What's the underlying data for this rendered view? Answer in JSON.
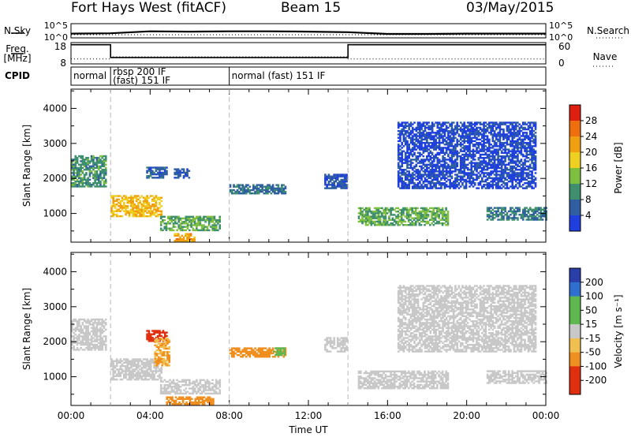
{
  "header": {
    "radar": "Fort Hays West (fitACF)",
    "beam": "Beam 15",
    "date": "03/May/2015"
  },
  "strips": {
    "nsky_label": "N.Sky",
    "nsearch_label": "N.Search",
    "freq_label": "Freq.",
    "freq_unit": "[MHz]",
    "nave_label": "Nave",
    "cpid_label": "CPID",
    "nsky_ticks": [
      "10^5",
      "10^0"
    ],
    "nsearch_ticks": [
      "10^5",
      "10^0"
    ],
    "freq_ticks": [
      "18",
      "8"
    ],
    "nave_ticks": [
      "60",
      "0"
    ],
    "cpid_segments": [
      {
        "start": 0.0,
        "end": 2.0,
        "lines": [
          "normal"
        ]
      },
      {
        "start": 2.0,
        "end": 8.0,
        "lines": [
          "rbsp 200 IF",
          "(fast) 151 IF"
        ]
      },
      {
        "start": 8.0,
        "end": 24.0,
        "lines": [
          "normal (fast) 151 IF"
        ]
      }
    ]
  },
  "chart_data": [
    {
      "type": "line",
      "title": "N.Sky / N.Search",
      "x_unit": "hours UT",
      "series": [
        {
          "name": "N.Sky",
          "x": [
            0,
            2,
            4,
            6,
            8,
            10,
            12,
            14,
            16,
            18,
            20,
            22,
            24
          ],
          "y_log10": [
            1.5,
            1.6,
            2.3,
            2.2,
            2.3,
            2.3,
            2.2,
            2.0,
            1.4,
            1.4,
            1.5,
            1.5,
            1.5
          ]
        }
      ]
    },
    {
      "type": "line",
      "title": "Freq. / Nave",
      "series": [
        {
          "name": "Freq.",
          "unit": "MHz",
          "x": [
            0,
            2,
            2,
            14,
            14,
            24
          ],
          "y": [
            17,
            17,
            11,
            11,
            17,
            17
          ]
        },
        {
          "name": "Nave",
          "x": [
            0,
            2,
            2,
            14,
            14,
            24
          ],
          "y": [
            14,
            14,
            20,
            20,
            14,
            14
          ]
        }
      ]
    },
    {
      "type": "heatmap",
      "ylabel": "Slant Range [km]",
      "colorbar_label": "Power [dB]",
      "colorbar_ticks": [
        4,
        8,
        12,
        16,
        20,
        24,
        28
      ],
      "xlim": [
        0,
        24
      ],
      "ylim": [
        180,
        4550
      ],
      "yticks": [
        1000,
        2000,
        3000,
        4000
      ],
      "regions": [
        {
          "t0": 0.0,
          "t1": 1.8,
          "r0": 1750,
          "r1": 2650,
          "v": 10
        },
        {
          "t0": 2.0,
          "t1": 4.6,
          "r0": 900,
          "r1": 1500,
          "v": 20
        },
        {
          "t0": 3.8,
          "t1": 4.8,
          "r0": 2000,
          "r1": 2300,
          "v": 6
        },
        {
          "t0": 5.2,
          "t1": 6.0,
          "r0": 2000,
          "r1": 2250,
          "v": 5
        },
        {
          "t0": 4.5,
          "t1": 7.5,
          "r0": 500,
          "r1": 900,
          "v": 12
        },
        {
          "t0": 5.2,
          "t1": 6.2,
          "r0": 200,
          "r1": 400,
          "v": 22
        },
        {
          "t0": 8.0,
          "t1": 10.8,
          "r0": 1550,
          "r1": 1800,
          "v": 7
        },
        {
          "t0": 12.8,
          "t1": 13.9,
          "r0": 1700,
          "r1": 2100,
          "v": 5
        },
        {
          "t0": 14.5,
          "t1": 19.0,
          "r0": 650,
          "r1": 1150,
          "v": 12
        },
        {
          "t0": 16.5,
          "t1": 23.5,
          "r0": 1700,
          "r1": 3600,
          "v": 3
        },
        {
          "t0": 21.0,
          "t1": 24.0,
          "r0": 800,
          "r1": 1150,
          "v": 8
        }
      ]
    },
    {
      "type": "heatmap",
      "ylabel": "Slant Range [km]",
      "xlabel": "Time UT",
      "colorbar_label": "Velocity [m s⁻¹]",
      "colorbar_ticks": [
        200,
        100,
        50,
        15,
        -15,
        -50,
        -100,
        -200
      ],
      "xticks": [
        "00:00",
        "04:00",
        "08:00",
        "12:00",
        "16:00",
        "20:00",
        "00:00"
      ],
      "xlim": [
        0,
        24
      ],
      "ylim": [
        180,
        4550
      ],
      "yticks": [
        1000,
        2000,
        3000,
        4000
      ],
      "regions": [
        {
          "t0": 0.0,
          "t1": 1.8,
          "r0": 1750,
          "r1": 2650,
          "v": 0
        },
        {
          "t0": 2.0,
          "t1": 4.6,
          "r0": 900,
          "r1": 1500,
          "v": 0
        },
        {
          "t0": 3.8,
          "t1": 4.8,
          "r0": 2000,
          "r1": 2300,
          "v": -200
        },
        {
          "t0": 4.2,
          "t1": 5.0,
          "r0": 1300,
          "r1": 2100,
          "v": -50
        },
        {
          "t0": 4.5,
          "t1": 7.5,
          "r0": 500,
          "r1": 900,
          "v": 0
        },
        {
          "t0": 4.8,
          "t1": 7.2,
          "r0": 200,
          "r1": 400,
          "v": -60
        },
        {
          "t0": 8.0,
          "t1": 10.8,
          "r0": 1550,
          "r1": 1800,
          "v": -90
        },
        {
          "t0": 10.2,
          "t1": 10.8,
          "r0": 1600,
          "r1": 1800,
          "v": 40
        },
        {
          "t0": 12.8,
          "t1": 13.9,
          "r0": 1700,
          "r1": 2100,
          "v": 0
        },
        {
          "t0": 14.5,
          "t1": 19.0,
          "r0": 650,
          "r1": 1150,
          "v": 0
        },
        {
          "t0": 16.5,
          "t1": 23.5,
          "r0": 1700,
          "r1": 3600,
          "v": 0
        },
        {
          "t0": 21.0,
          "t1": 24.0,
          "r0": 800,
          "r1": 1150,
          "v": 0
        }
      ]
    }
  ],
  "colors": {
    "power_scale": [
      "#1f3fdf",
      "#2f5fa0",
      "#3f8f6f",
      "#7fbf3f",
      "#efcf1f",
      "#ef9f0f",
      "#ef6f0f",
      "#df1f0f"
    ],
    "velocity_scale": [
      "#2a3faa",
      "#2f6fcf",
      "#5fb84f",
      "#c8c8c8",
      "#efc04f",
      "#ef8f1f",
      "#df2f0f"
    ]
  }
}
